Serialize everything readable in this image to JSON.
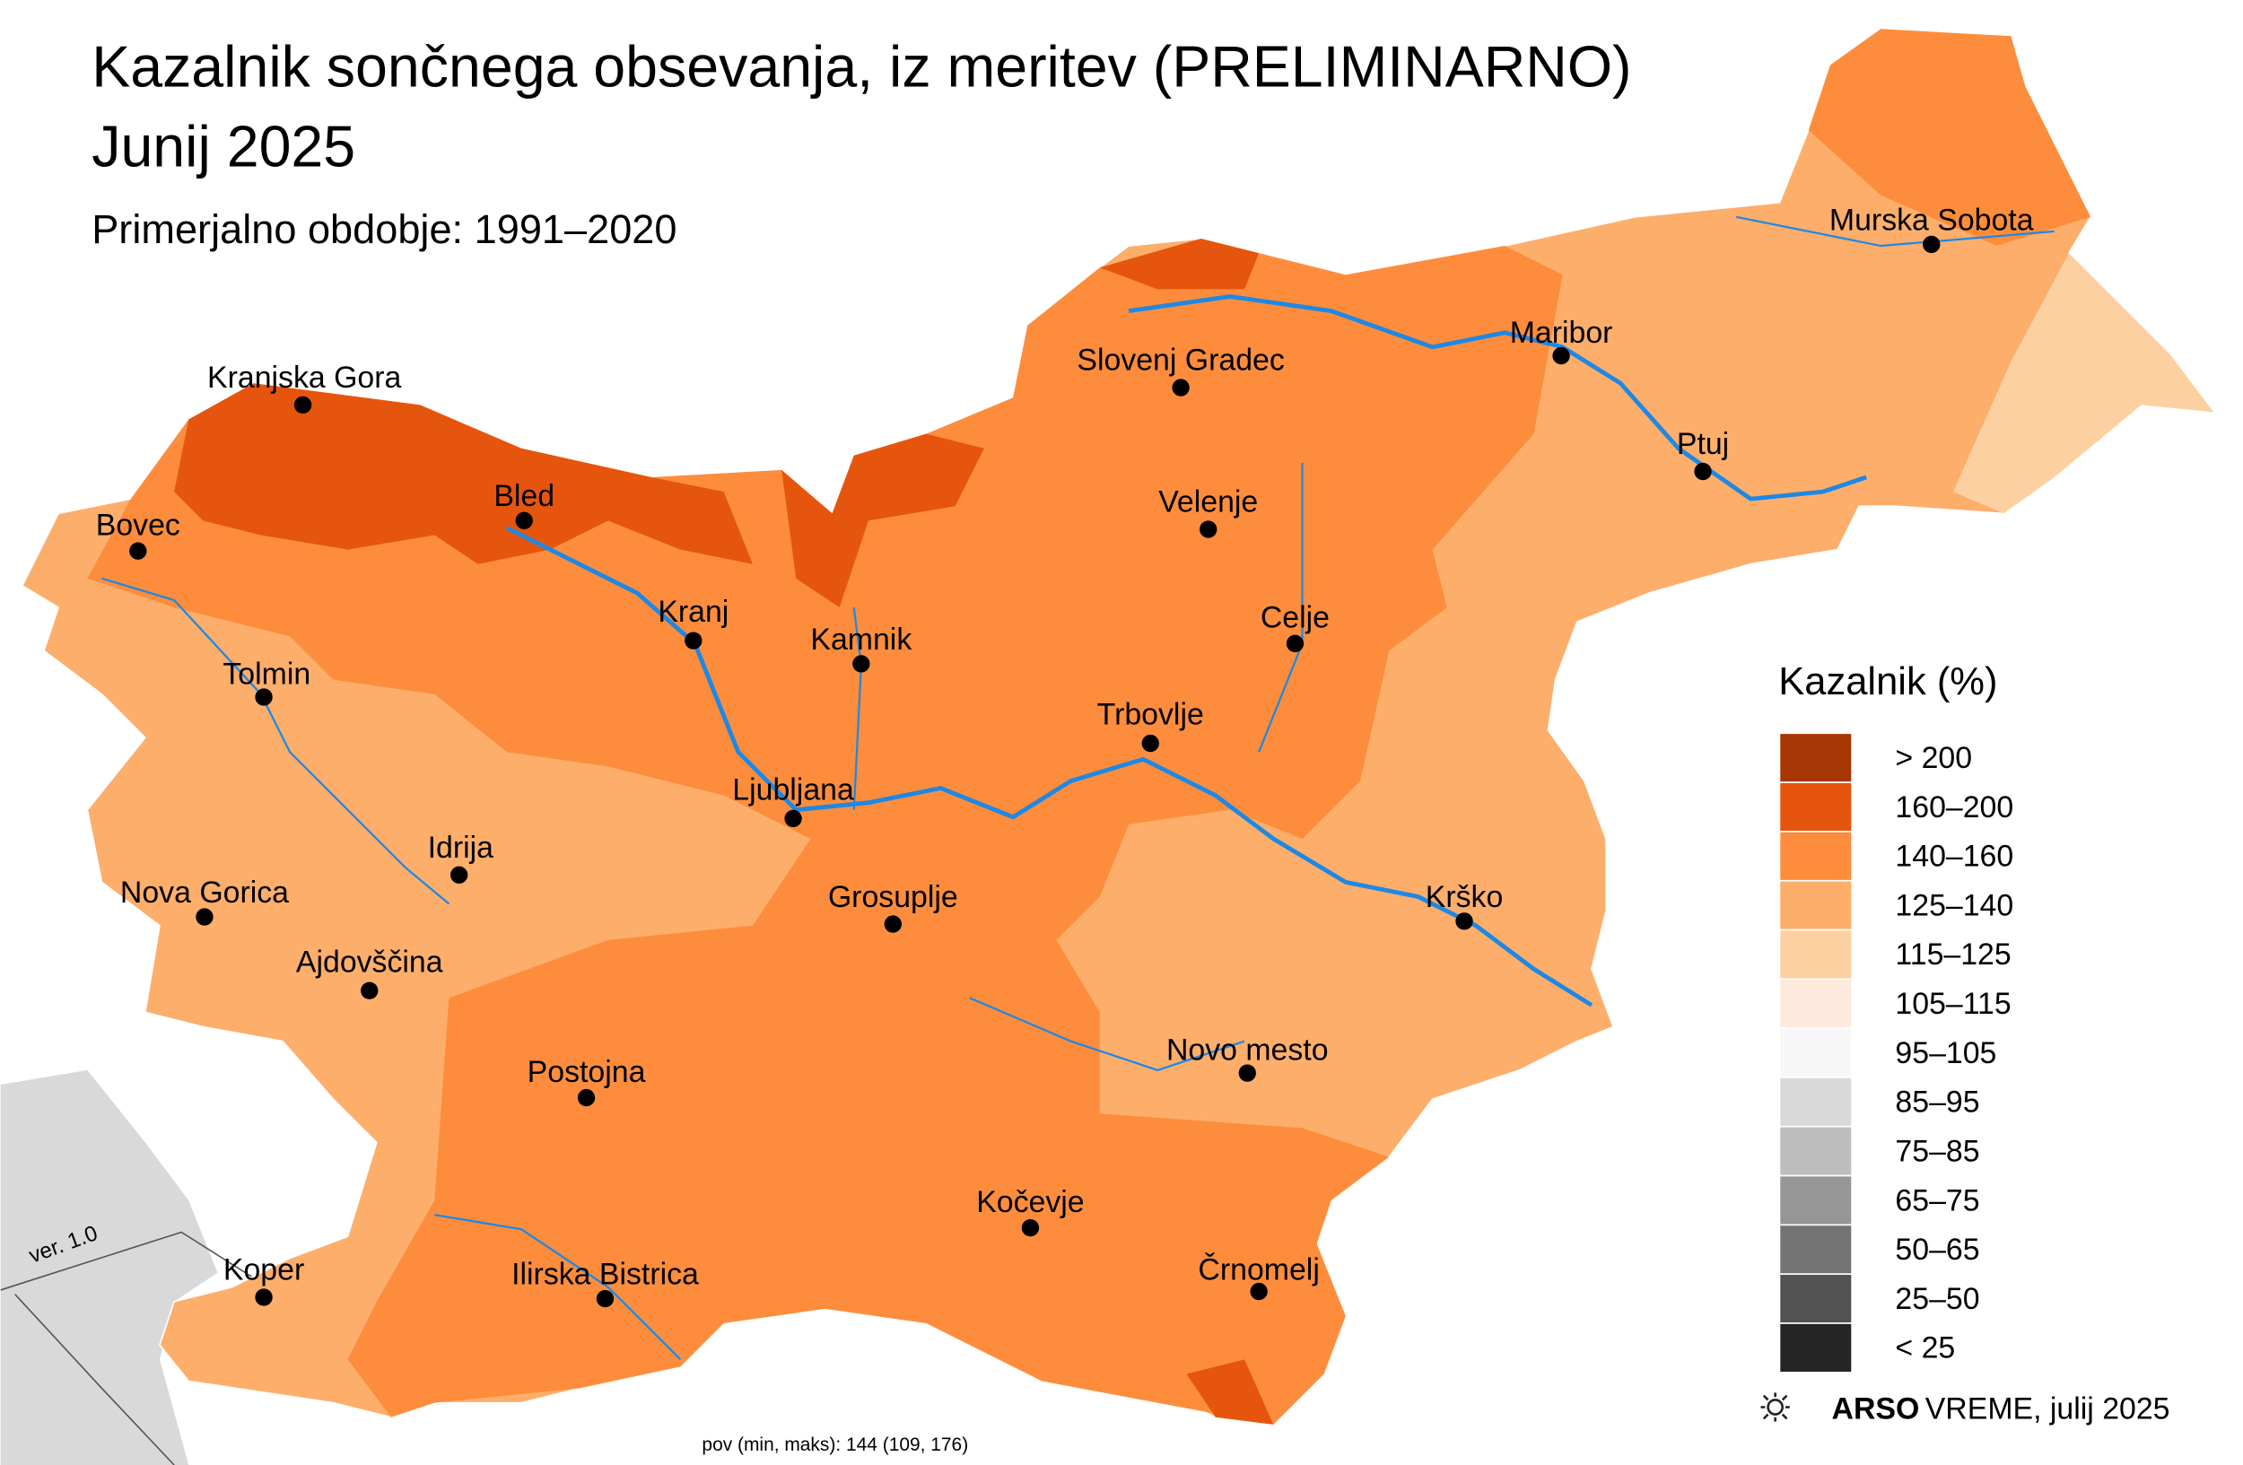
{
  "header": {
    "title": "Kazalnik sončnega obsevanja, iz meritev (PRELIMINARNO)",
    "subtitle_date": "Junij 2025",
    "reference_period": "Primerjalno obdobje: 1991–2020"
  },
  "cities": [
    "Kranjska Gora",
    "Bled",
    "Bovec",
    "Kranj",
    "Kamnik",
    "Tolmin",
    "Ljubljana",
    "Idrija",
    "Nova Gorica",
    "Grosuplje",
    "Ajdovščina",
    "Postojna",
    "Slovenj Gradec",
    "Velenje",
    "Maribor",
    "Murska Sobota",
    "Ptuj",
    "Celje",
    "Trbovlje",
    "Krško",
    "Novo mesto",
    "Kočevje",
    "Črnomelj",
    "Koper",
    "Ilirska Bistrica"
  ],
  "legend": {
    "title": "Kazalnik (%)",
    "items": [
      {
        "label": "> 200",
        "color": "#a63603"
      },
      {
        "label": "160–200",
        "color": "#e6550d"
      },
      {
        "label": "140–160",
        "color": "#fd8d3c"
      },
      {
        "label": "125–140",
        "color": "#fdae6b"
      },
      {
        "label": "115–125",
        "color": "#fdd0a2"
      },
      {
        "label": "105–115",
        "color": "#feeadc"
      },
      {
        "label": "95–105",
        "color": "#f7f7f7"
      },
      {
        "label": "85–95",
        "color": "#d9d9d9"
      },
      {
        "label": "75–85",
        "color": "#bdbdbd"
      },
      {
        "label": "65–75",
        "color": "#969696"
      },
      {
        "label": "50–65",
        "color": "#737373"
      },
      {
        "label": "25–50",
        "color": "#525252"
      },
      {
        "label": "< 25",
        "color": "#252525"
      }
    ]
  },
  "footer": {
    "brand": "ARSO",
    "product": "VREME",
    "date": ", julij 2025"
  },
  "stats": "pov (min, maks): 144 (109, 176)",
  "version": "ver. 1.0"
}
